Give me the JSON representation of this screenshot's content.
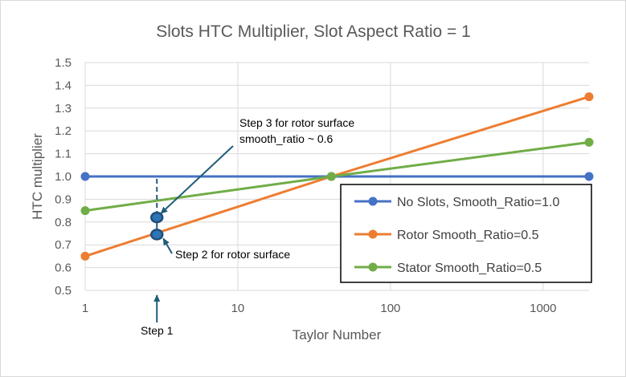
{
  "chart_data": {
    "type": "line",
    "title": "Slots HTC Multiplier, Slot Aspect Ratio = 1",
    "xlabel": "Taylor Number",
    "ylabel": "HTC multiplier",
    "xscale": "log",
    "xlim": [
      1,
      2000
    ],
    "ylim": [
      0.5,
      1.5
    ],
    "x_ticks": [
      1,
      10,
      100,
      1000
    ],
    "x_tick_labels": [
      "1",
      "10",
      "100",
      "1000"
    ],
    "y_ticks": [
      0.5,
      0.6,
      0.7,
      0.8,
      0.9,
      1.0,
      1.1,
      1.2,
      1.3,
      1.4,
      1.5
    ],
    "y_tick_labels": [
      "0.5",
      "0.6",
      "0.7",
      "0.8",
      "0.9",
      "1.0",
      "1.1",
      "1.2",
      "1.3",
      "1.4",
      "1.5"
    ],
    "grid": true,
    "legend_position": "bottom-right",
    "series": [
      {
        "name": "No Slots, Smooth_Ratio=1.0",
        "color": "#4472c4",
        "x": [
          1,
          41,
          2000
        ],
        "y": [
          1.0,
          1.0,
          1.0
        ]
      },
      {
        "name": "Rotor Smooth_Ratio=0.5",
        "color": "#ed7d31",
        "x": [
          1,
          41,
          2000
        ],
        "y": [
          0.65,
          1.0,
          1.35
        ]
      },
      {
        "name": "Stator Smooth_Ratio=0.5",
        "color": "#70ad47",
        "x": [
          1,
          41,
          2000
        ],
        "y": [
          0.85,
          1.0,
          1.15
        ]
      }
    ],
    "annotations": {
      "step1": {
        "label": "Step 1",
        "x": 2.95
      },
      "step2": {
        "label": "Step 2 for rotor surface",
        "x": 2.95,
        "y": 0.745
      },
      "step3": {
        "lines": [
          "Step 3 for rotor surface",
          "smooth_ratio ~ 0.6"
        ],
        "x": 2.95,
        "y": 0.82
      },
      "marker_color": "#1f4e79",
      "marker_fill": "#2e75b6",
      "guide_color": "#1f5c7a"
    }
  }
}
